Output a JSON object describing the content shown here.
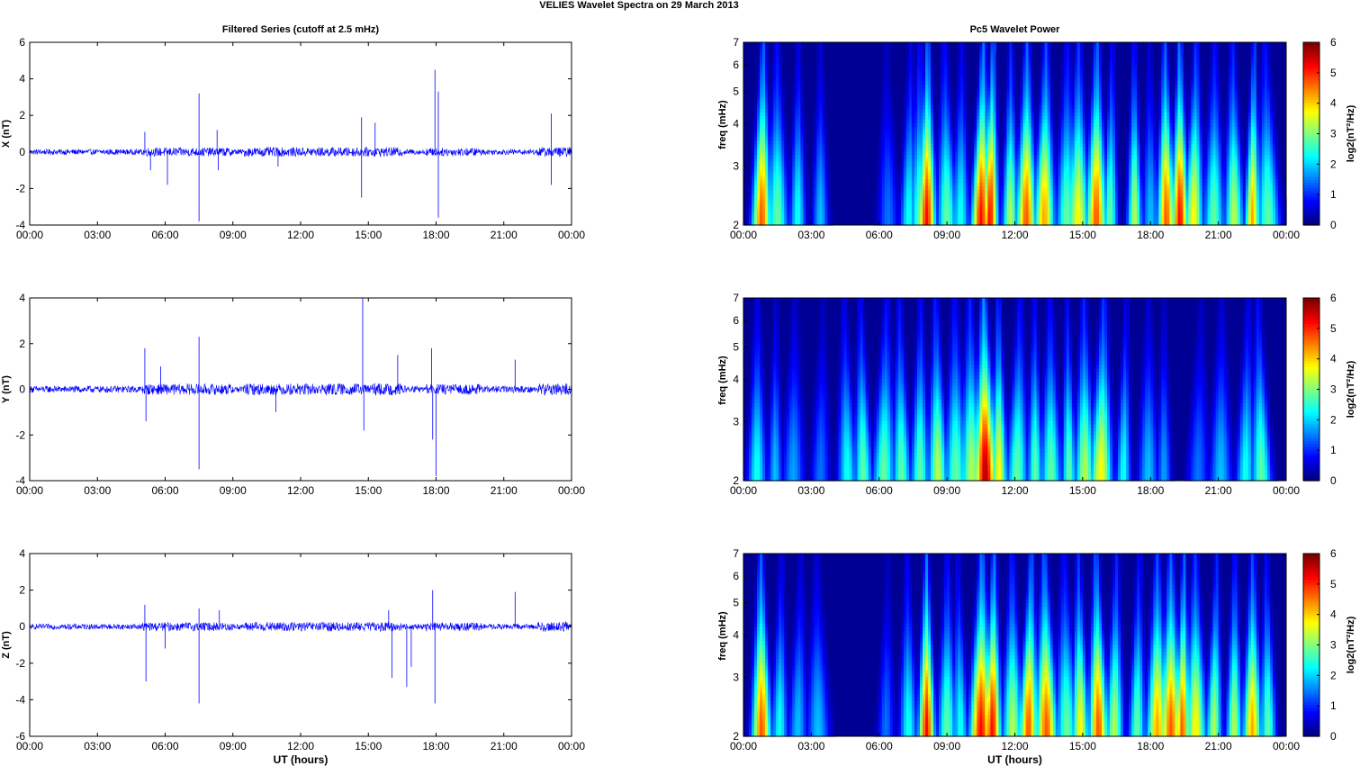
{
  "figure": {
    "title": "VELIES Wavelet Spectra on 29 March     2013"
  },
  "colors": {
    "series_line": "#0000ff",
    "axis": "#000000",
    "colormap": "jet"
  },
  "chart_data": [
    {
      "type": "line",
      "title": "Filtered Series (cutoff at 2.5 mHz)",
      "ylabel": "X (nT)",
      "xlabel": "",
      "ylim": [
        -4,
        6
      ],
      "yticks": [
        "6",
        "4",
        "2",
        "0",
        "-2",
        "-4"
      ],
      "xticks": [
        "00:00",
        "03:00",
        "06:00",
        "09:00",
        "12:00",
        "15:00",
        "18:00",
        "21:00",
        "00:00"
      ],
      "x_range_hours": [
        0,
        24
      ],
      "baseline": 0,
      "noise_amplitude": 0.15,
      "spikes": [
        {
          "t": 5.1,
          "v": 1.1
        },
        {
          "t": 5.35,
          "v": -1.0
        },
        {
          "t": 6.1,
          "v": -1.8
        },
        {
          "t": 7.5,
          "v": 3.2
        },
        {
          "t": 7.5,
          "v": -3.8
        },
        {
          "t": 8.3,
          "v": 1.2
        },
        {
          "t": 8.35,
          "v": -1.0
        },
        {
          "t": 11.0,
          "v": -0.8
        },
        {
          "t": 14.7,
          "v": 1.9
        },
        {
          "t": 14.7,
          "v": -2.5
        },
        {
          "t": 15.3,
          "v": 1.6
        },
        {
          "t": 17.95,
          "v": 4.5
        },
        {
          "t": 18.1,
          "v": 3.3
        },
        {
          "t": 18.1,
          "v": -3.6
        },
        {
          "t": 23.1,
          "v": 2.1
        },
        {
          "t": 23.1,
          "v": -1.8
        }
      ]
    },
    {
      "type": "line",
      "title": "",
      "ylabel": "Y (nT)",
      "xlabel": "",
      "ylim": [
        -4,
        4
      ],
      "yticks": [
        "4",
        "2",
        "0",
        "-2",
        "-4"
      ],
      "xticks": [
        "00:00",
        "03:00",
        "06:00",
        "09:00",
        "12:00",
        "15:00",
        "18:00",
        "21:00",
        "00:00"
      ],
      "x_range_hours": [
        0,
        24
      ],
      "baseline": 0,
      "noise_amplitude": 0.15,
      "spikes": [
        {
          "t": 5.1,
          "v": 1.8
        },
        {
          "t": 5.15,
          "v": -1.4
        },
        {
          "t": 5.8,
          "v": 1.0
        },
        {
          "t": 7.5,
          "v": 2.3
        },
        {
          "t": 7.5,
          "v": -3.5
        },
        {
          "t": 10.9,
          "v": -1.0
        },
        {
          "t": 14.75,
          "v": 4.0
        },
        {
          "t": 14.8,
          "v": -1.8
        },
        {
          "t": 16.3,
          "v": 1.5
        },
        {
          "t": 17.8,
          "v": 1.8
        },
        {
          "t": 17.85,
          "v": -2.2
        },
        {
          "t": 18.0,
          "v": -3.8
        },
        {
          "t": 21.5,
          "v": 1.3
        }
      ]
    },
    {
      "type": "line",
      "title": "",
      "ylabel": "Z (nT)",
      "xlabel": "UT (hours)",
      "ylim": [
        -6,
        4
      ],
      "yticks": [
        "4",
        "2",
        "0",
        "-2",
        "-4",
        "-6"
      ],
      "xticks": [
        "00:00",
        "03:00",
        "06:00",
        "09:00",
        "12:00",
        "15:00",
        "18:00",
        "21:00",
        "00:00"
      ],
      "x_range_hours": [
        0,
        24
      ],
      "baseline": 0,
      "noise_amplitude": 0.15,
      "spikes": [
        {
          "t": 5.1,
          "v": 1.2
        },
        {
          "t": 5.15,
          "v": -3.0
        },
        {
          "t": 6.0,
          "v": -1.2
        },
        {
          "t": 7.5,
          "v": 1.0
        },
        {
          "t": 7.5,
          "v": -4.2
        },
        {
          "t": 8.4,
          "v": 0.9
        },
        {
          "t": 15.9,
          "v": 0.9
        },
        {
          "t": 16.05,
          "v": -2.8
        },
        {
          "t": 16.7,
          "v": -3.3
        },
        {
          "t": 16.9,
          "v": -2.2
        },
        {
          "t": 17.85,
          "v": 2.0
        },
        {
          "t": 17.95,
          "v": -4.2
        },
        {
          "t": 21.5,
          "v": 1.9
        }
      ]
    },
    {
      "type": "heatmap",
      "title": "Pc5 Wavelet Power",
      "ylabel": "freq (mHz)",
      "xlabel": "",
      "ylim": [
        2,
        7
      ],
      "yscale": "log",
      "yticks": [
        "7",
        "6",
        "5",
        "4",
        "3",
        "2"
      ],
      "xticks": [
        "00:00",
        "03:00",
        "06:00",
        "09:00",
        "12:00",
        "15:00",
        "18:00",
        "21:00",
        "00:00"
      ],
      "x_range_hours": [
        0,
        24
      ],
      "colorbar": {
        "label": "log2(nT²/Hz)",
        "range": [
          0,
          6
        ],
        "ticks": [
          "6",
          "5",
          "4",
          "3",
          "2",
          "1",
          "0"
        ]
      },
      "blobs": [
        [
          0.8,
          5.0
        ],
        [
          1.5,
          3.0
        ],
        [
          2.4,
          2.5
        ],
        [
          3.4,
          2.0
        ],
        [
          6.4,
          1.5
        ],
        [
          7.3,
          2.5
        ],
        [
          7.8,
          3.0
        ],
        [
          8.1,
          5.5
        ],
        [
          9.0,
          3.0
        ],
        [
          9.6,
          2.5
        ],
        [
          10.5,
          5.5
        ],
        [
          10.9,
          5.5
        ],
        [
          11.8,
          3.5
        ],
        [
          12.5,
          5.0
        ],
        [
          13.3,
          4.5
        ],
        [
          14.3,
          3.0
        ],
        [
          14.8,
          4.0
        ],
        [
          15.6,
          5.0
        ],
        [
          16.2,
          3.0
        ],
        [
          17.3,
          3.5
        ],
        [
          18.0,
          2.0
        ],
        [
          18.7,
          5.0
        ],
        [
          19.3,
          5.5
        ],
        [
          19.9,
          4.0
        ],
        [
          20.8,
          3.0
        ],
        [
          21.7,
          3.5
        ],
        [
          22.5,
          4.5
        ],
        [
          23.2,
          3.0
        ]
      ]
    },
    {
      "type": "heatmap",
      "title": "",
      "ylabel": "freq (mHz)",
      "xlabel": "",
      "ylim": [
        2,
        7
      ],
      "yscale": "log",
      "yticks": [
        "7",
        "6",
        "5",
        "4",
        "3",
        "2"
      ],
      "xticks": [
        "00:00",
        "03:00",
        "06:00",
        "09:00",
        "12:00",
        "15:00",
        "18:00",
        "21:00",
        "00:00"
      ],
      "x_range_hours": [
        0,
        24
      ],
      "colorbar": {
        "label": "log2(nT²/Hz)",
        "range": [
          0,
          6
        ],
        "ticks": [
          "6",
          "5",
          "4",
          "3",
          "2",
          "1",
          "0"
        ]
      },
      "blobs": [
        [
          0.6,
          2.5
        ],
        [
          1.4,
          2.0
        ],
        [
          2.2,
          1.8
        ],
        [
          3.4,
          1.5
        ],
        [
          4.6,
          2.5
        ],
        [
          5.3,
          3.0
        ],
        [
          6.2,
          3.0
        ],
        [
          7.0,
          3.0
        ],
        [
          7.8,
          3.0
        ],
        [
          8.6,
          3.5
        ],
        [
          9.4,
          3.0
        ],
        [
          10.1,
          3.5
        ],
        [
          10.7,
          6.0
        ],
        [
          11.3,
          4.0
        ],
        [
          12.1,
          3.0
        ],
        [
          12.9,
          3.0
        ],
        [
          13.6,
          3.0
        ],
        [
          14.4,
          3.0
        ],
        [
          15.1,
          3.5
        ],
        [
          15.8,
          4.0
        ],
        [
          16.8,
          2.5
        ],
        [
          17.9,
          2.0
        ],
        [
          18.6,
          1.8
        ],
        [
          20.1,
          1.5
        ],
        [
          21.1,
          2.0
        ],
        [
          22.2,
          2.5
        ],
        [
          22.9,
          3.0
        ]
      ]
    },
    {
      "type": "heatmap",
      "title": "",
      "ylabel": "freq (mHz)",
      "xlabel": "UT (hours)",
      "ylim": [
        2,
        7
      ],
      "yscale": "log",
      "yticks": [
        "7",
        "6",
        "5",
        "4",
        "3",
        "2"
      ],
      "xticks": [
        "00:00",
        "03:00",
        "06:00",
        "09:00",
        "12:00",
        "15:00",
        "18:00",
        "21:00",
        "00:00"
      ],
      "x_range_hours": [
        0,
        24
      ],
      "colorbar": {
        "label": "log2(nT²/Hz)",
        "range": [
          0,
          6
        ],
        "ticks": [
          "6",
          "5",
          "4",
          "3",
          "2",
          "1",
          "0"
        ]
      },
      "blobs": [
        [
          0.8,
          5.0
        ],
        [
          1.6,
          2.5
        ],
        [
          2.4,
          2.0
        ],
        [
          3.3,
          2.0
        ],
        [
          6.3,
          1.5
        ],
        [
          7.3,
          2.5
        ],
        [
          8.1,
          5.5
        ],
        [
          9.0,
          3.0
        ],
        [
          9.6,
          2.5
        ],
        [
          10.5,
          5.5
        ],
        [
          11.0,
          5.5
        ],
        [
          11.9,
          3.5
        ],
        [
          12.6,
          5.0
        ],
        [
          13.4,
          5.0
        ],
        [
          14.3,
          3.0
        ],
        [
          14.9,
          4.0
        ],
        [
          15.7,
          5.0
        ],
        [
          16.4,
          3.5
        ],
        [
          17.4,
          3.0
        ],
        [
          18.3,
          4.5
        ],
        [
          18.9,
          5.0
        ],
        [
          19.4,
          5.0
        ],
        [
          20.0,
          4.0
        ],
        [
          20.8,
          3.5
        ],
        [
          21.7,
          3.5
        ],
        [
          22.5,
          4.5
        ],
        [
          23.2,
          3.0
        ]
      ]
    }
  ]
}
